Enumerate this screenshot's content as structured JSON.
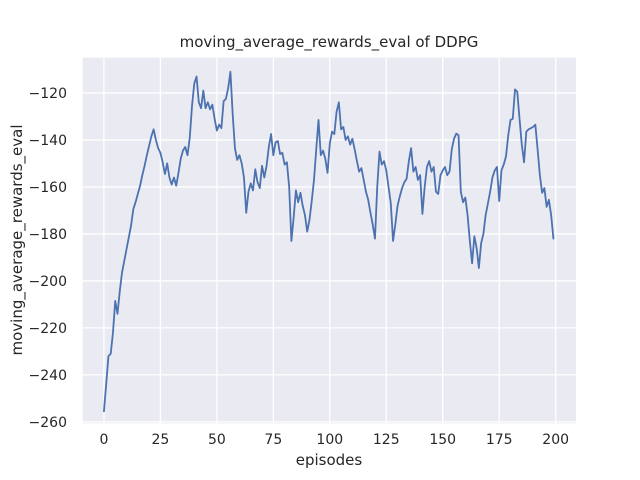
{
  "figure": {
    "background": "#ffffff"
  },
  "chart_data": {
    "type": "line",
    "title": "moving_average_rewards_eval of DDPG",
    "xlabel": "episodes",
    "ylabel": "moving_average_rewards_eval",
    "legend": "none",
    "grid": true,
    "xlim": [
      -9.4,
      209.0
    ],
    "ylim": [
      -260.6,
      -105.0
    ],
    "x_tick_values": [
      0,
      25,
      50,
      75,
      100,
      125,
      150,
      175,
      200
    ],
    "x_tick_labels": [
      "0",
      "25",
      "50",
      "75",
      "100",
      "125",
      "150",
      "175",
      "200"
    ],
    "y_tick_values": [
      -120,
      -140,
      -160,
      -180,
      -200,
      -220,
      -240,
      -260
    ],
    "y_tick_labels": [
      "−120",
      "−140",
      "−160",
      "−180",
      "−200",
      "−220",
      "−240",
      "−260"
    ],
    "style": {
      "plot_background": "#eaeaf2",
      "grid_color": "#ffffff",
      "line_color": "#4c72b0",
      "text_color": "#262626",
      "line_width": 1.8
    },
    "series": [
      {
        "name": "moving_average_rewards_eval",
        "x_start": 0,
        "x_step": 1,
        "y": [
          -255.5,
          -244,
          -232,
          -231,
          -222,
          -208.5,
          -214,
          -204.5,
          -196.5,
          -191.5,
          -186.5,
          -181.5,
          -176.5,
          -169.5,
          -166.5,
          -163,
          -159.5,
          -155,
          -151,
          -146.5,
          -142.5,
          -138.5,
          -135.5,
          -140,
          -143.5,
          -145.5,
          -149.5,
          -154.5,
          -150,
          -156,
          -159,
          -156,
          -159.5,
          -154,
          -148,
          -144.5,
          -143,
          -146.5,
          -139,
          -125.5,
          -116,
          -113,
          -124,
          -126.5,
          -119,
          -126.5,
          -124,
          -127,
          -125,
          -131,
          -136,
          -133.5,
          -135,
          -123.5,
          -122.5,
          -118,
          -111,
          -129,
          -143.5,
          -148.5,
          -146.5,
          -150,
          -156,
          -171,
          -162,
          -158.5,
          -161.5,
          -152.5,
          -158,
          -160.5,
          -151,
          -156,
          -151,
          -143,
          -137.5,
          -146.5,
          -141,
          -140.5,
          -146,
          -145.5,
          -150.5,
          -149.5,
          -160,
          -183,
          -173,
          -161.5,
          -166.5,
          -162.5,
          -168,
          -172,
          -179,
          -174,
          -166,
          -157,
          -144,
          -131.5,
          -146.5,
          -144.5,
          -148,
          -154,
          -141.5,
          -136.5,
          -137.5,
          -128,
          -124,
          -135.5,
          -134.5,
          -140,
          -138.5,
          -142,
          -139.5,
          -144,
          -149,
          -153.5,
          -152,
          -157,
          -162,
          -165.5,
          -171,
          -176,
          -182,
          -160,
          -145,
          -150.5,
          -149,
          -153,
          -160,
          -167,
          -183,
          -176,
          -168,
          -164,
          -160.5,
          -158,
          -156.5,
          -149,
          -143.5,
          -153.5,
          -151.5,
          -157,
          -155,
          -171.5,
          -160,
          -151.5,
          -149,
          -153.5,
          -151.5,
          -162,
          -163,
          -155,
          -153,
          -151.5,
          -155,
          -153.5,
          -144,
          -139.5,
          -137.3,
          -138,
          -162,
          -166.5,
          -164.5,
          -172,
          -183,
          -192.5,
          -181,
          -186,
          -194.5,
          -184,
          -180,
          -172,
          -167,
          -162,
          -156,
          -153,
          -151.5,
          -166,
          -153,
          -150.5,
          -147,
          -138,
          -131.5,
          -131,
          -118.5,
          -119.5,
          -131,
          -142,
          -149.5,
          -136.5,
          -135.5,
          -135,
          -134.5,
          -133.5,
          -144,
          -155,
          -162.5,
          -160.5,
          -168.5,
          -165.5,
          -172,
          -182
        ]
      }
    ]
  }
}
